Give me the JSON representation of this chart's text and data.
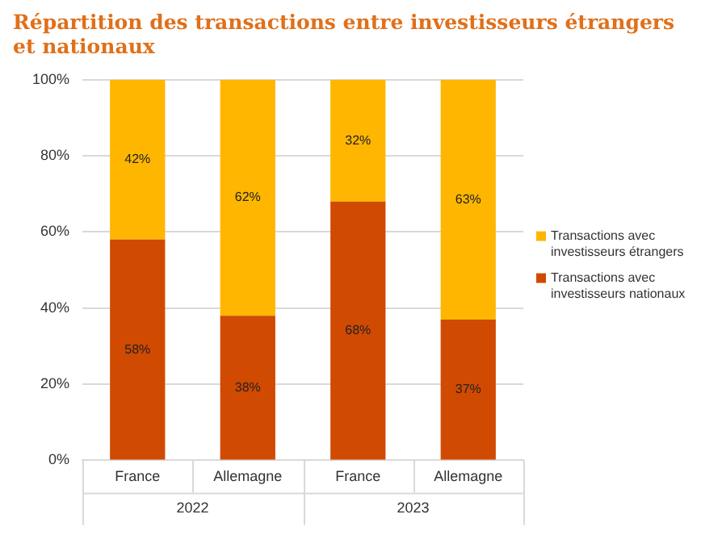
{
  "chart_data": {
    "type": "bar",
    "title": "Répartition des transactions entre investisseurs étrangers et nationaux",
    "categories": [
      "France",
      "Allemagne",
      "France",
      "Allemagne"
    ],
    "series": [
      {
        "name": "Transactions avec investisseurs nationaux",
        "color": "#d04a02",
        "values": [
          58,
          38,
          68,
          37
        ],
        "value_labels": [
          "58%",
          "38%",
          "68%",
          "37%"
        ]
      },
      {
        "name": "Transactions avec investisseurs étrangers",
        "color": "#ffb600",
        "values": [
          42,
          62,
          32,
          63
        ],
        "value_labels": [
          "42%",
          "62%",
          "32%",
          "63%"
        ]
      }
    ],
    "stacked": true,
    "ylim": [
      0,
      100
    ],
    "yticks": [
      {
        "value": 0,
        "label": "0%"
      },
      {
        "value": 20,
        "label": "20%"
      },
      {
        "value": 40,
        "label": "40%"
      },
      {
        "value": 60,
        "label": "60%"
      },
      {
        "value": 80,
        "label": "80%"
      },
      {
        "value": 100,
        "label": "100%"
      }
    ],
    "grid": "y",
    "legend": "right",
    "annotations": [
      "2022",
      "2023"
    ]
  }
}
